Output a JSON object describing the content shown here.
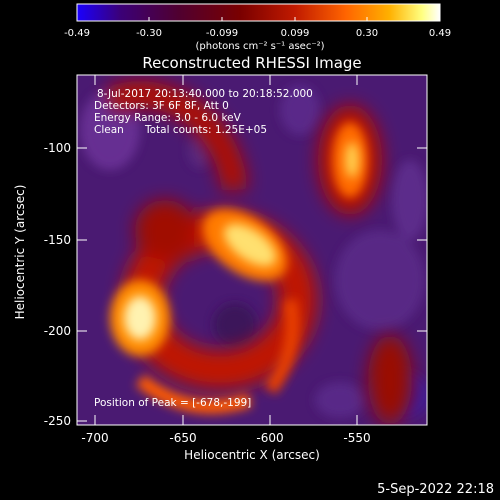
{
  "colorbar": {
    "ticks": [
      "-0.49",
      "-0.30",
      "-0.099",
      "0.099",
      "0.30",
      "0.49"
    ],
    "units": "(photons cm⁻² s⁻¹ asec⁻²)",
    "stops": [
      "#1a00ff",
      "#3b0077",
      "#500030",
      "#7a0000",
      "#c01a00",
      "#ff6400",
      "#ffb000",
      "#ffff80",
      "#ffffff"
    ]
  },
  "plot": {
    "title": "Reconstructed RHESSI Image",
    "xlabel": "Heliocentric X (arcsec)",
    "ylabel": "Heliocentric Y (arcsec)",
    "xticks": [
      "-700",
      "-650",
      "-600",
      "-550"
    ],
    "yticks": [
      "-100",
      "-150",
      "-200",
      "-250"
    ]
  },
  "annotations": {
    "time_range": "8-Jul-2017 20:13:40.000 to 20:18:52.000",
    "detectors": "Detectors: 3F 6F 8F, Att 0",
    "energy": "Energy Range: 3.0 - 6.0 keV",
    "method": "Clean",
    "total_counts": "Total counts: 1.25E+05",
    "peak": "Position of Peak = [-678,-199]"
  },
  "footer": {
    "date": "5-Sep-2022 22:18"
  }
}
